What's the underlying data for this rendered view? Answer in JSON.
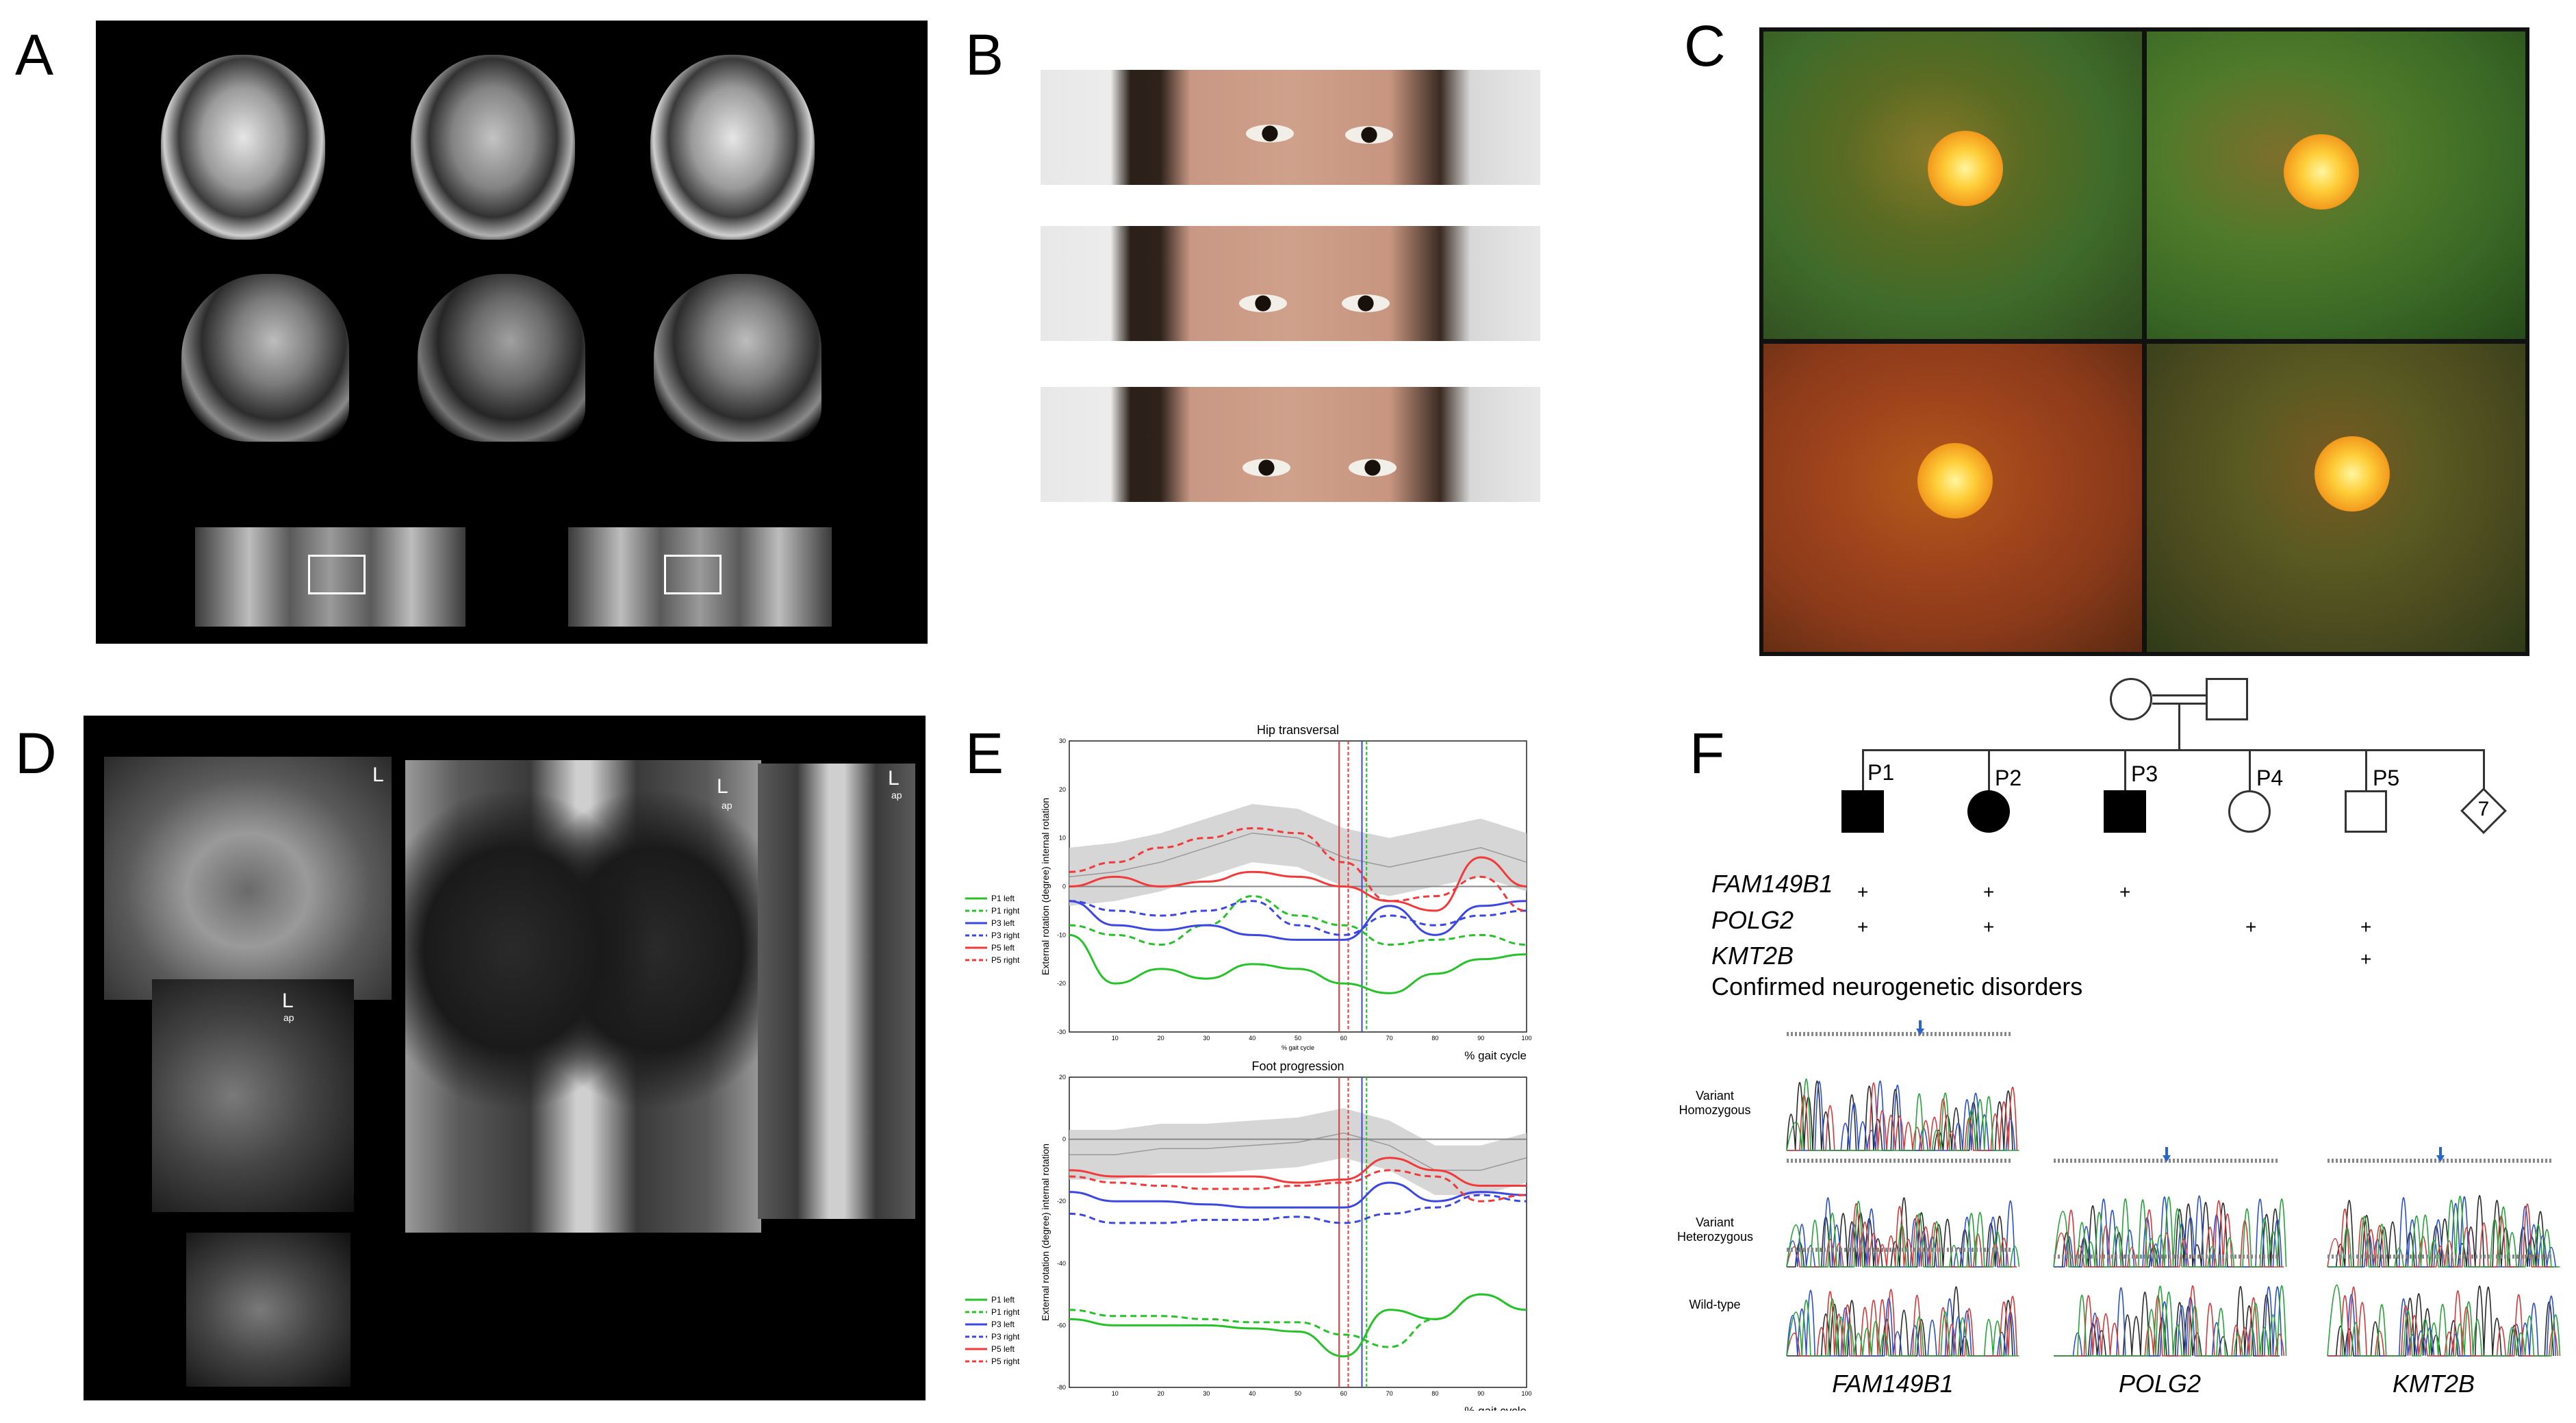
{
  "panels": {
    "a": {
      "letter": "A"
    },
    "b": {
      "letter": "B"
    },
    "c": {
      "letter": "C"
    },
    "d": {
      "letter": "D",
      "labels": [
        "L",
        "L",
        "L",
        "L"
      ],
      "sublabels": [
        "ap",
        "ap",
        "ap"
      ]
    },
    "e": {
      "letter": "E",
      "plot1": {
        "title": "Hip transversal",
        "ylabel": "External rotation (degree) internal rotation",
        "xlabel_small": "% gait cycle",
        "xlabel": "% gait cycle",
        "yticks": [
          "30",
          "20",
          "10",
          "0",
          "-10",
          "-20",
          "-30"
        ],
        "xticks": [
          "10",
          "20",
          "30",
          "40",
          "50",
          "60",
          "70",
          "80",
          "90",
          "100"
        ]
      },
      "plot2": {
        "title": "Foot progression",
        "ylabel": "External rotation (degree) internal rotation",
        "xlabel": "% gait cycle",
        "yticks": [
          "20",
          "0",
          "-20",
          "-40",
          "-60",
          "-80"
        ],
        "xticks": [
          "10",
          "20",
          "30",
          "40",
          "50",
          "60",
          "70",
          "80",
          "90",
          "100"
        ]
      },
      "legend": [
        {
          "label": "P1 left",
          "color": "#27c22a",
          "dash": false
        },
        {
          "label": "P1 right",
          "color": "#27c22a",
          "dash": true
        },
        {
          "label": "P3 left",
          "color": "#3b47e0",
          "dash": false
        },
        {
          "label": "P3 right",
          "color": "#3b47e0",
          "dash": true
        },
        {
          "label": "P5 left",
          "color": "#f23a3a",
          "dash": false
        },
        {
          "label": "P5 right",
          "color": "#f23a3a",
          "dash": true
        }
      ]
    },
    "f": {
      "letter": "F",
      "pedigree": {
        "children": [
          "P1",
          "P2",
          "P3",
          "P4",
          "P5"
        ],
        "sibling_count": "7"
      },
      "genes": [
        "FAM149B1",
        "POLG2",
        "KMT2B"
      ],
      "confirmed": "Confirmed neurogenetic disorders",
      "plus": "+",
      "row_labels": [
        "Variant\nHomozygous",
        "Variant\nHeterozygous",
        "Wild-type"
      ],
      "bottom_genes": [
        "FAM149B1",
        "POLG2",
        "KMT2B"
      ]
    }
  },
  "chart_data": [
    {
      "type": "line",
      "title": "Hip transversal",
      "xlabel": "% gait cycle",
      "ylabel": "External rotation (degree) internal rotation",
      "xlim": [
        0,
        100
      ],
      "ylim": [
        -30,
        30
      ],
      "x": [
        0,
        10,
        20,
        30,
        40,
        50,
        60,
        70,
        80,
        90,
        100
      ],
      "band": {
        "mean": [
          2,
          3,
          5,
          8,
          11,
          10,
          6,
          4,
          6,
          8,
          5
        ],
        "sd": 6
      },
      "vlines": [
        59,
        61,
        64,
        65
      ],
      "series": [
        {
          "name": "P1 left",
          "values": [
            -10,
            -20,
            -17,
            -19,
            -16,
            -17,
            -20,
            -22,
            -18,
            -15,
            -14
          ]
        },
        {
          "name": "P1 right",
          "values": [
            -8,
            -10,
            -12,
            -8,
            -2,
            -6,
            -8,
            -12,
            -11,
            -10,
            -12
          ]
        },
        {
          "name": "P3 left",
          "values": [
            -3,
            -8,
            -9,
            -8,
            -10,
            -11,
            -11,
            -4,
            -10,
            -4,
            -3
          ]
        },
        {
          "name": "P3 right",
          "values": [
            -3,
            -5,
            -6,
            -5,
            -3,
            -8,
            -10,
            -6,
            -8,
            -6,
            -5
          ]
        },
        {
          "name": "P5 left",
          "values": [
            0,
            2,
            0,
            1,
            3,
            2,
            0,
            -3,
            -5,
            6,
            0
          ]
        },
        {
          "name": "P5 right",
          "values": [
            3,
            5,
            8,
            10,
            12,
            11,
            5,
            -3,
            -2,
            2,
            -5
          ]
        }
      ]
    },
    {
      "type": "line",
      "title": "Foot progression",
      "xlabel": "% gait cycle",
      "ylabel": "External rotation (degree) internal rotation",
      "xlim": [
        0,
        100
      ],
      "ylim": [
        -80,
        20
      ],
      "x": [
        0,
        10,
        20,
        30,
        40,
        50,
        60,
        70,
        80,
        90,
        100
      ],
      "band": {
        "mean": [
          -5,
          -5,
          -3,
          -3,
          -2,
          -1,
          2,
          -2,
          -10,
          -10,
          -6
        ],
        "sd": 8
      },
      "vlines": [
        59,
        61,
        64,
        65
      ],
      "series": [
        {
          "name": "P1 left",
          "values": [
            -58,
            -60,
            -60,
            -60,
            -61,
            -62,
            -70,
            -55,
            -58,
            -50,
            -55
          ]
        },
        {
          "name": "P1 right",
          "values": [
            -55,
            -57,
            -57,
            -58,
            -59,
            -59,
            -63,
            -67,
            -58,
            -50,
            -55
          ]
        },
        {
          "name": "P3 left",
          "values": [
            -17,
            -20,
            -20,
            -21,
            -22,
            -22,
            -22,
            -14,
            -20,
            -17,
            -18
          ]
        },
        {
          "name": "P3 right",
          "values": [
            -24,
            -27,
            -27,
            -26,
            -26,
            -25,
            -27,
            -24,
            -22,
            -18,
            -20
          ]
        },
        {
          "name": "P5 left",
          "values": [
            -10,
            -12,
            -12,
            -12,
            -12,
            -14,
            -13,
            -6,
            -10,
            -15,
            -15
          ]
        },
        {
          "name": "P5 right",
          "values": [
            -12,
            -14,
            -15,
            -16,
            -16,
            -15,
            -14,
            -10,
            -12,
            -20,
            -18
          ]
        }
      ]
    }
  ]
}
